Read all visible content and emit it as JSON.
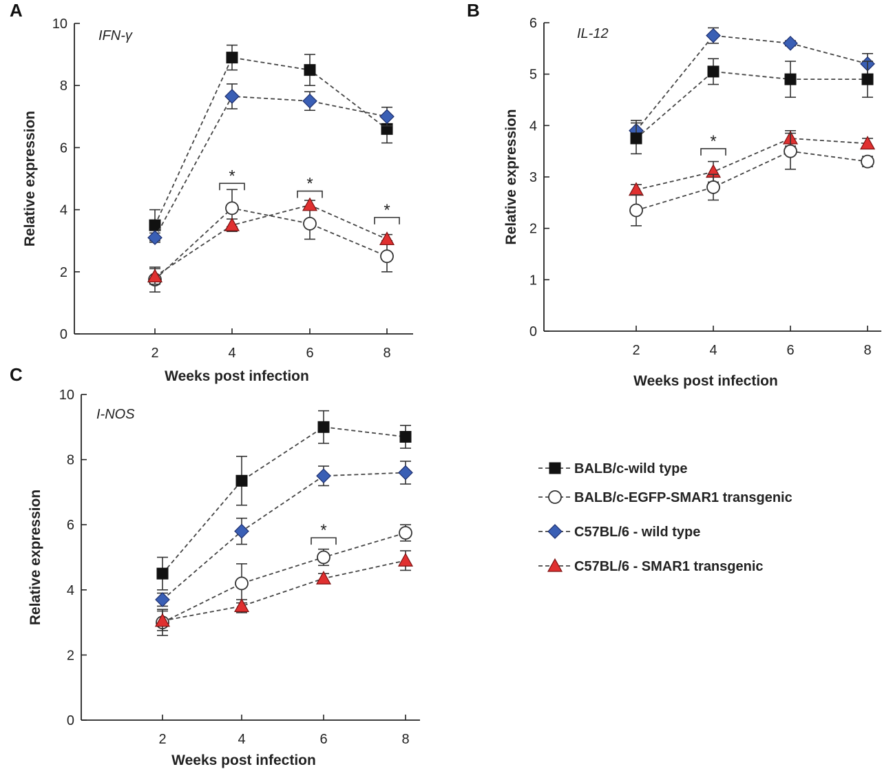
{
  "chart_data": [
    {
      "id": "A",
      "panel_letter": "A",
      "type": "line",
      "title": "IFN-γ",
      "xlabel": "Weeks post infection",
      "ylabel": "Relative expression",
      "x": [
        2,
        4,
        6,
        8
      ],
      "x_tick_labels": [
        "2",
        "4",
        "6",
        "8"
      ],
      "ylim": [
        0,
        10
      ],
      "y_ticks": [
        0,
        2,
        4,
        6,
        8,
        10
      ],
      "y_tick_labels": [
        "0",
        "2",
        "4",
        "6",
        "8",
        "10"
      ],
      "series": [
        {
          "name": "BALB/c-wild type",
          "marker": "square",
          "values": [
            3.5,
            8.9,
            8.5,
            6.6
          ],
          "errors": [
            0.5,
            0.4,
            0.5,
            0.45
          ]
        },
        {
          "name": "C57BL/6 - wild type",
          "marker": "diamond",
          "values": [
            3.1,
            7.65,
            7.5,
            7.0
          ],
          "errors": [
            0.15,
            0.4,
            0.3,
            0.3
          ]
        },
        {
          "name": "BALB/c-EGFP-SMAR1 transgenic",
          "marker": "circle",
          "values": [
            1.75,
            4.05,
            3.55,
            2.5
          ],
          "errors": [
            0.4,
            0.6,
            0.5,
            0.5
          ]
        },
        {
          "name": "C57BL/6 - SMAR1 transgenic",
          "marker": "triangle",
          "values": [
            1.85,
            3.5,
            4.15,
            3.05
          ],
          "errors": [
            0.25,
            0.2,
            0.15,
            0.15
          ]
        }
      ],
      "significance": [
        {
          "x": 4,
          "label": "*",
          "bracket_y": 4.85
        },
        {
          "x": 6,
          "label": "*",
          "bracket_y": 4.6
        },
        {
          "x": 8,
          "label": "*",
          "bracket_y": 3.75
        }
      ]
    },
    {
      "id": "B",
      "panel_letter": "B",
      "type": "line",
      "title": "IL-12",
      "xlabel": "Weeks post infection",
      "ylabel": "Relative expression",
      "x": [
        2,
        4,
        6,
        8
      ],
      "x_tick_labels": [
        "2",
        "4",
        "6",
        "8"
      ],
      "ylim": [
        0,
        6
      ],
      "y_ticks": [
        0,
        1,
        2,
        3,
        4,
        5,
        6
      ],
      "y_tick_labels": [
        "0",
        "1",
        "2",
        "3",
        "4",
        "5",
        "6"
      ],
      "series": [
        {
          "name": "C57BL/6 - wild type",
          "marker": "diamond",
          "values": [
            3.9,
            5.75,
            5.6,
            5.2
          ],
          "errors": [
            0.2,
            0.15,
            0.05,
            0.2
          ]
        },
        {
          "name": "BALB/c-wild type",
          "marker": "square",
          "values": [
            3.75,
            5.05,
            4.9,
            4.9
          ],
          "errors": [
            0.3,
            0.25,
            0.35,
            0.35
          ]
        },
        {
          "name": "C57BL/6 - SMAR1 transgenic",
          "marker": "triangle",
          "values": [
            2.75,
            3.1,
            3.75,
            3.65
          ],
          "errors": [
            0.1,
            0.2,
            0.15,
            0.1
          ]
        },
        {
          "name": "BALB/c-EGFP-SMAR1 transgenic",
          "marker": "circle",
          "values": [
            2.35,
            2.8,
            3.5,
            3.3
          ],
          "errors": [
            0.3,
            0.25,
            0.35,
            0.1
          ]
        }
      ],
      "significance": [
        {
          "x": 4,
          "label": "*",
          "bracket_y": 3.55
        }
      ]
    },
    {
      "id": "C",
      "panel_letter": "C",
      "type": "line",
      "title": "I-NOS",
      "xlabel": "Weeks post infection",
      "ylabel": "Relative expression",
      "x": [
        2,
        4,
        6,
        8
      ],
      "x_tick_labels": [
        "2",
        "4",
        "6",
        "8"
      ],
      "ylim": [
        0,
        10
      ],
      "y_ticks": [
        0,
        2,
        4,
        6,
        8,
        10
      ],
      "y_tick_labels": [
        "0",
        "2",
        "4",
        "6",
        "8",
        "10"
      ],
      "series": [
        {
          "name": "BALB/c-wild type",
          "marker": "square",
          "values": [
            4.5,
            7.35,
            9.0,
            8.7
          ],
          "errors": [
            0.5,
            0.75,
            0.5,
            0.35
          ]
        },
        {
          "name": "C57BL/6 - wild type",
          "marker": "diamond",
          "values": [
            3.7,
            5.8,
            7.5,
            7.6
          ],
          "errors": [
            0.2,
            0.4,
            0.3,
            0.35
          ]
        },
        {
          "name": "BALB/c-EGFP-SMAR1 transgenic",
          "marker": "circle",
          "values": [
            3.0,
            4.2,
            5.0,
            5.75
          ],
          "errors": [
            0.4,
            0.6,
            0.25,
            0.25
          ]
        },
        {
          "name": "C57BL/6 - SMAR1 transgenic",
          "marker": "triangle",
          "values": [
            3.05,
            3.5,
            4.35,
            4.9
          ],
          "errors": [
            0.3,
            0.2,
            0.15,
            0.3
          ]
        }
      ],
      "significance": [
        {
          "x": 6,
          "label": "*",
          "bracket_y": 5.6
        }
      ]
    }
  ],
  "legend": {
    "items": [
      {
        "name": "BALB/c-wild type",
        "marker": "square"
      },
      {
        "name": "BALB/c-EGFP-SMAR1 transgenic",
        "marker": "circle"
      },
      {
        "name": "C57BL/6 - wild type",
        "marker": "diamond"
      },
      {
        "name": "C57BL/6 - SMAR1 transgenic",
        "marker": "triangle"
      }
    ]
  },
  "colors": {
    "square": "#111111",
    "circle": "#ffffff",
    "diamond": "#3a5fb5",
    "triangle": "#e03030",
    "outline": "#333333"
  }
}
